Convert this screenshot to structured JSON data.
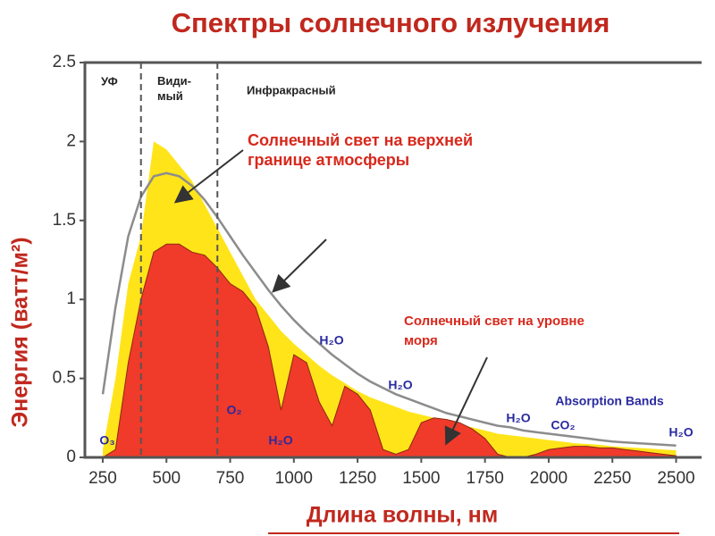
{
  "chart_data": {
    "type": "area",
    "title": "Спектры солнечного излучения",
    "x_label": "Длина волны, нм",
    "y_label": "Энергия (ватт/м²)",
    "xlim": [
      180,
      2600
    ],
    "ylim": [
      0,
      2.5
    ],
    "xticks": [
      250,
      500,
      750,
      1000,
      1250,
      1500,
      1750,
      2000,
      2250,
      2500
    ],
    "yticks": [
      0,
      0.5,
      1,
      1.5,
      2,
      2.5
    ],
    "dividers": [
      400,
      700
    ],
    "regions": [
      "УФ",
      "Види-\nмый",
      "Инфракрасный"
    ],
    "absorption_title": "Absorption Bands",
    "absorption_labels": [
      "O₃",
      "O₂",
      "H₂O",
      "H₂O",
      "H₂O",
      "H₂O",
      "CO₂",
      "H₂O"
    ],
    "x": [
      250,
      300,
      350,
      400,
      450,
      500,
      550,
      600,
      650,
      700,
      750,
      800,
      850,
      900,
      950,
      1000,
      1050,
      1100,
      1150,
      1200,
      1250,
      1300,
      1350,
      1400,
      1450,
      1500,
      1550,
      1600,
      1650,
      1700,
      1750,
      1800,
      1850,
      1900,
      1950,
      2000,
      2050,
      2100,
      2150,
      2200,
      2250,
      2300,
      2350,
      2400,
      2450,
      2500
    ],
    "series": [
      {
        "name": "Солнечный свет на верхней границе атмосферы",
        "color": "#ffe41a",
        "values": [
          0.05,
          0.5,
          1.1,
          1.4,
          2.0,
          1.95,
          1.85,
          1.75,
          1.6,
          1.45,
          1.3,
          1.15,
          1.0,
          0.9,
          0.8,
          0.72,
          0.65,
          0.58,
          0.52,
          0.47,
          0.42,
          0.38,
          0.35,
          0.32,
          0.29,
          0.27,
          0.25,
          0.23,
          0.21,
          0.19,
          0.17,
          0.15,
          0.14,
          0.13,
          0.12,
          0.11,
          0.1,
          0.09,
          0.085,
          0.08,
          0.07,
          0.065,
          0.06,
          0.055,
          0.05,
          0.045
        ]
      },
      {
        "name": "Солнечный свет на уровне моря",
        "color": "#f03a2a",
        "values": [
          0,
          0.05,
          0.6,
          1.0,
          1.3,
          1.35,
          1.35,
          1.3,
          1.28,
          1.2,
          1.1,
          1.05,
          0.95,
          0.7,
          0.3,
          0.65,
          0.6,
          0.35,
          0.2,
          0.45,
          0.4,
          0.3,
          0.05,
          0.02,
          0.05,
          0.22,
          0.25,
          0.24,
          0.22,
          0.18,
          0.12,
          0.02,
          0,
          0,
          0.02,
          0.05,
          0.06,
          0.07,
          0.07,
          0.06,
          0.06,
          0.05,
          0.04,
          0.03,
          0.02,
          0.01
        ]
      },
      {
        "color": "#8c8c8c",
        "values": [
          0.4,
          0.95,
          1.4,
          1.65,
          1.78,
          1.8,
          1.78,
          1.72,
          1.63,
          1.52,
          1.4,
          1.28,
          1.17,
          1.06,
          0.96,
          0.87,
          0.79,
          0.72,
          0.65,
          0.59,
          0.53,
          0.48,
          0.44,
          0.4,
          0.37,
          0.34,
          0.31,
          0.28,
          0.26,
          0.24,
          0.22,
          0.2,
          0.19,
          0.17,
          0.16,
          0.15,
          0.14,
          0.13,
          0.12,
          0.11,
          0.1,
          0.095,
          0.09,
          0.085,
          0.08,
          0.075
        ]
      }
    ]
  }
}
